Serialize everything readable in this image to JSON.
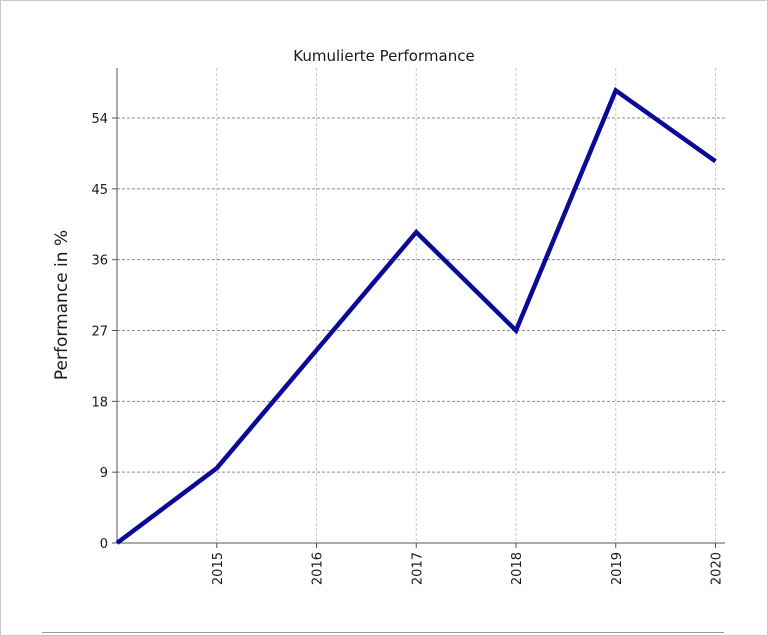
{
  "chart_data": {
    "type": "line",
    "title": "Kumulierte Performance",
    "xlabel": "",
    "ylabel": "Performance in %",
    "x": [
      "2014",
      "2015",
      "2016",
      "2017",
      "2018",
      "2019",
      "2020"
    ],
    "x_tick_labels": [
      "2015",
      "2016",
      "2017",
      "2018",
      "2019",
      "2020"
    ],
    "ylim": [
      0,
      60
    ],
    "y_ticks": [
      0,
      9,
      18,
      27,
      36,
      45,
      54
    ],
    "grid": true,
    "series": [
      {
        "values": [
          0,
          9.5,
          24.5,
          39.5,
          27,
          57.5,
          48.5
        ]
      }
    ],
    "colors": {
      "line": "#0a0a96",
      "grid": "#8c8c8c",
      "axis": "#555555"
    }
  }
}
